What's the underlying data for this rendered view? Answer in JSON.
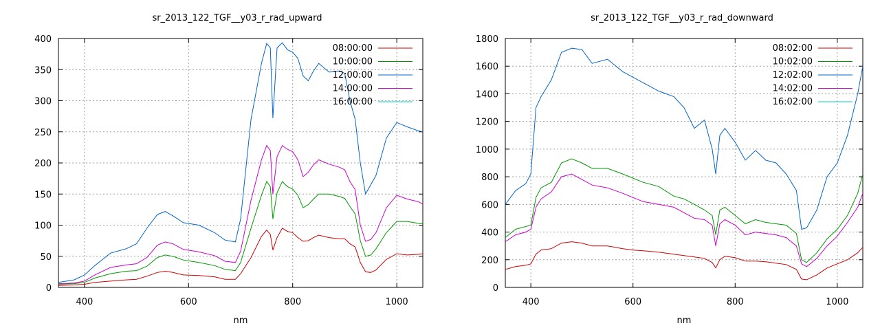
{
  "chart_data": [
    {
      "type": "line",
      "title": "sr_2013_122_TGF__y03_r_rad_upward",
      "xlabel": "nm",
      "ylabel": "",
      "xlim": [
        350,
        1050
      ],
      "ylim": [
        0,
        400
      ],
      "xticks": [
        400,
        600,
        800,
        1000
      ],
      "yticks": [
        0,
        50,
        100,
        150,
        200,
        250,
        300,
        350,
        400
      ],
      "grid": true,
      "legend_position": "top-right",
      "series": [
        {
          "name": "08:00:00",
          "color": "#cc0000",
          "x": [
            350,
            380,
            400,
            420,
            450,
            480,
            500,
            520,
            540,
            555,
            570,
            590,
            620,
            650,
            670,
            690,
            700,
            720,
            740,
            750,
            757,
            762,
            770,
            780,
            790,
            800,
            810,
            820,
            830,
            840,
            850,
            870,
            890,
            900,
            910,
            920,
            930,
            940,
            950,
            960,
            980,
            1000,
            1020,
            1040,
            1050
          ],
          "y": [
            3,
            4,
            5,
            8,
            10,
            12,
            13,
            18,
            24,
            26,
            24,
            20,
            19,
            17,
            13,
            13,
            22,
            48,
            82,
            92,
            85,
            60,
            80,
            95,
            90,
            88,
            80,
            74,
            75,
            80,
            84,
            80,
            78,
            78,
            70,
            65,
            40,
            25,
            24,
            28,
            45,
            54,
            52,
            53,
            54
          ]
        },
        {
          "name": "10:00:00",
          "color": "#009900",
          "x": [
            350,
            380,
            400,
            420,
            450,
            480,
            500,
            520,
            540,
            555,
            570,
            590,
            620,
            650,
            670,
            690,
            700,
            720,
            740,
            750,
            757,
            762,
            770,
            780,
            790,
            800,
            810,
            820,
            830,
            840,
            850,
            870,
            890,
            900,
            910,
            920,
            930,
            940,
            950,
            960,
            980,
            1000,
            1020,
            1040,
            1050
          ],
          "y": [
            5,
            6,
            8,
            15,
            22,
            26,
            27,
            34,
            48,
            52,
            50,
            44,
            40,
            35,
            29,
            27,
            40,
            95,
            148,
            170,
            162,
            110,
            152,
            170,
            162,
            158,
            148,
            128,
            133,
            142,
            150,
            150,
            146,
            143,
            130,
            118,
            75,
            50,
            52,
            62,
            88,
            106,
            106,
            103,
            102
          ]
        },
        {
          "name": "12:00:00",
          "color": "#0066cc",
          "x": [
            350,
            380,
            400,
            420,
            450,
            480,
            500,
            520,
            540,
            555,
            570,
            590,
            620,
            650,
            670,
            690,
            700,
            720,
            740,
            750,
            757,
            762,
            770,
            780,
            790,
            800,
            810,
            820,
            830,
            840,
            850,
            870,
            890,
            900,
            910,
            920,
            930,
            940,
            950,
            960,
            980,
            1000,
            1020,
            1040,
            1050
          ],
          "y": [
            8,
            12,
            20,
            35,
            55,
            62,
            70,
            95,
            117,
            122,
            115,
            104,
            100,
            88,
            76,
            73,
            110,
            270,
            360,
            392,
            385,
            272,
            385,
            393,
            382,
            378,
            368,
            340,
            332,
            348,
            360,
            346,
            348,
            344,
            300,
            270,
            200,
            150,
            165,
            180,
            240,
            265,
            258,
            252,
            250
          ]
        },
        {
          "name": "14:00:00",
          "color": "#cc00cc",
          "x": [
            350,
            380,
            400,
            420,
            450,
            480,
            500,
            520,
            540,
            555,
            570,
            590,
            620,
            650,
            670,
            690,
            700,
            720,
            740,
            750,
            757,
            762,
            770,
            780,
            790,
            800,
            810,
            820,
            830,
            840,
            850,
            870,
            890,
            900,
            910,
            920,
            930,
            940,
            950,
            960,
            980,
            1000,
            1020,
            1040,
            1050
          ],
          "y": [
            6,
            7,
            10,
            20,
            32,
            36,
            38,
            48,
            68,
            73,
            70,
            61,
            57,
            51,
            42,
            40,
            58,
            140,
            205,
            228,
            220,
            150,
            210,
            228,
            222,
            218,
            205,
            178,
            185,
            197,
            205,
            198,
            193,
            189,
            170,
            157,
            100,
            74,
            77,
            88,
            128,
            148,
            142,
            138,
            134
          ]
        },
        {
          "name": "16:00:00",
          "color": "#00cccc",
          "x": [
            350,
            1050
          ],
          "y": [
            null,
            null
          ]
        }
      ]
    },
    {
      "type": "line",
      "title": "sr_2013_122_TGF__y03_r_rad_downward",
      "xlabel": "nm",
      "ylabel": "",
      "xlim": [
        350,
        1050
      ],
      "ylim": [
        0,
        1800
      ],
      "xticks": [
        400,
        600,
        800,
        1000
      ],
      "yticks": [
        0,
        200,
        400,
        600,
        800,
        1000,
        1200,
        1400,
        1600,
        1800
      ],
      "grid": true,
      "legend_position": "top-right",
      "series": [
        {
          "name": "08:02:00",
          "color": "#cc0000",
          "x": [
            350,
            370,
            390,
            400,
            410,
            420,
            440,
            460,
            480,
            500,
            520,
            550,
            580,
            600,
            620,
            650,
            680,
            700,
            720,
            740,
            755,
            762,
            770,
            780,
            800,
            820,
            840,
            860,
            880,
            900,
            920,
            930,
            940,
            960,
            980,
            1000,
            1020,
            1040,
            1050
          ],
          "y": [
            130,
            150,
            160,
            170,
            240,
            270,
            280,
            320,
            330,
            320,
            300,
            300,
            280,
            270,
            265,
            255,
            240,
            230,
            220,
            210,
            180,
            140,
            200,
            225,
            215,
            190,
            190,
            185,
            175,
            165,
            130,
            60,
            55,
            90,
            140,
            170,
            200,
            250,
            290
          ]
        },
        {
          "name": "10:02:00",
          "color": "#009900",
          "x": [
            350,
            370,
            390,
            400,
            410,
            420,
            440,
            460,
            480,
            500,
            520,
            550,
            580,
            600,
            620,
            650,
            680,
            700,
            720,
            740,
            755,
            762,
            770,
            780,
            800,
            820,
            840,
            860,
            880,
            900,
            920,
            930,
            940,
            960,
            980,
            1000,
            1020,
            1040,
            1050
          ],
          "y": [
            360,
            420,
            440,
            450,
            650,
            720,
            760,
            900,
            930,
            900,
            860,
            860,
            820,
            790,
            760,
            730,
            660,
            640,
            600,
            560,
            520,
            380,
            560,
            580,
            520,
            460,
            490,
            470,
            460,
            450,
            390,
            200,
            180,
            250,
            350,
            420,
            520,
            680,
            820
          ]
        },
        {
          "name": "12:02:00",
          "color": "#0066cc",
          "x": [
            350,
            370,
            390,
            400,
            410,
            420,
            440,
            460,
            480,
            500,
            520,
            550,
            580,
            600,
            620,
            650,
            680,
            700,
            720,
            740,
            755,
            762,
            770,
            780,
            800,
            820,
            840,
            860,
            880,
            900,
            920,
            930,
            940,
            960,
            980,
            1000,
            1020,
            1040,
            1050
          ],
          "y": [
            600,
            700,
            750,
            820,
            1300,
            1380,
            1500,
            1700,
            1730,
            1720,
            1620,
            1650,
            1560,
            1520,
            1480,
            1420,
            1380,
            1300,
            1150,
            1210,
            1000,
            820,
            1100,
            1150,
            1050,
            920,
            990,
            920,
            900,
            820,
            700,
            420,
            430,
            560,
            800,
            900,
            1100,
            1400,
            1600
          ]
        },
        {
          "name": "14:02:00",
          "color": "#cc00cc",
          "x": [
            350,
            370,
            390,
            400,
            410,
            420,
            440,
            460,
            480,
            500,
            520,
            550,
            580,
            600,
            620,
            650,
            680,
            700,
            720,
            740,
            755,
            762,
            770,
            780,
            800,
            820,
            840,
            860,
            880,
            900,
            920,
            930,
            940,
            960,
            980,
            1000,
            1020,
            1040,
            1050
          ],
          "y": [
            330,
            380,
            400,
            420,
            580,
            640,
            690,
            800,
            820,
            780,
            740,
            720,
            680,
            650,
            620,
            600,
            580,
            540,
            500,
            490,
            450,
            300,
            460,
            490,
            450,
            380,
            400,
            390,
            380,
            360,
            300,
            170,
            150,
            210,
            300,
            370,
            470,
            580,
            680
          ]
        },
        {
          "name": "16:02:00",
          "color": "#00cccc",
          "x": [
            350,
            1050
          ],
          "y": [
            null,
            null
          ]
        }
      ]
    }
  ]
}
